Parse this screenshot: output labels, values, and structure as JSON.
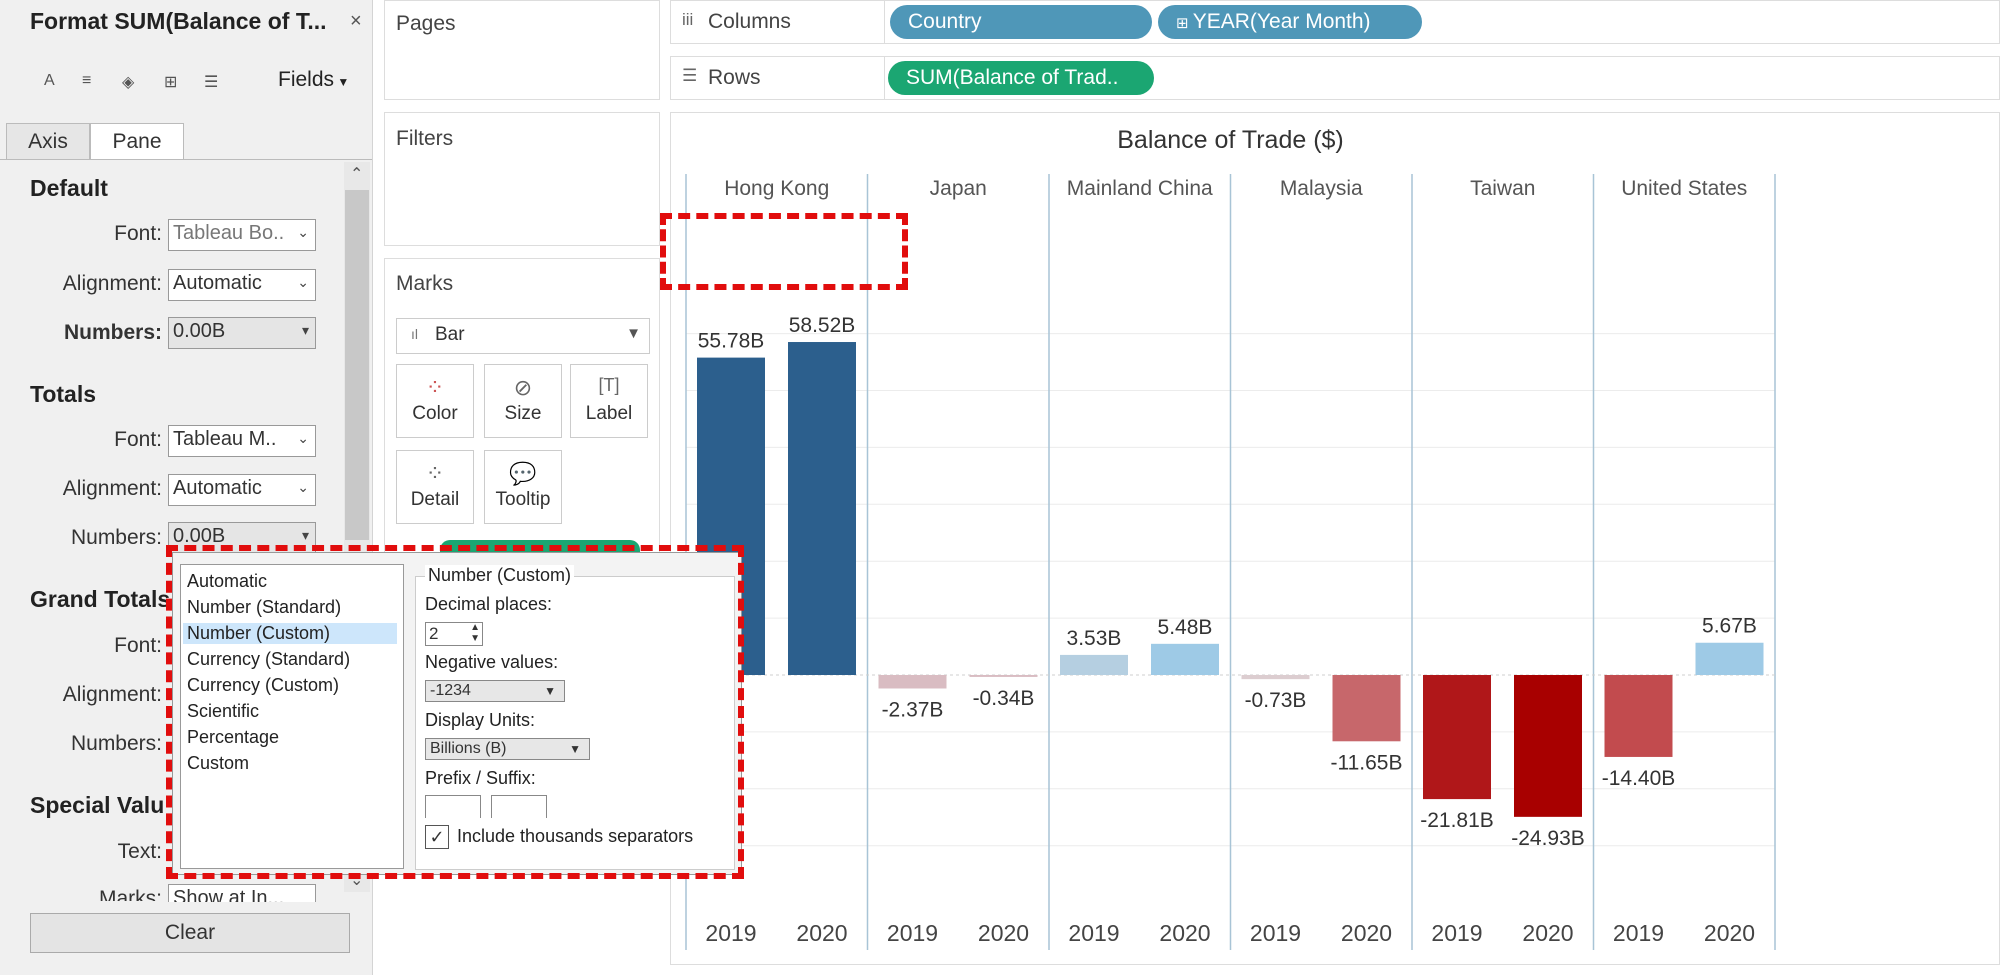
{
  "format_pane": {
    "title": "Format SUM(Balance of T...",
    "close": "×",
    "toolbar_icons": [
      "font-icon",
      "align-icon",
      "shading-icon",
      "borders-icon",
      "lines-icon"
    ],
    "fields_label": "Fields",
    "tabs": [
      "Axis",
      "Pane"
    ],
    "default": {
      "heading": "Default",
      "font_label": "Font:",
      "font_value": "Tableau Bo..",
      "alignment_label": "Alignment:",
      "alignment_value": "Automatic",
      "numbers_label": "Numbers:",
      "numbers_value": "0.00B"
    },
    "totals": {
      "heading": "Totals",
      "font_label": "Font:",
      "font_value": "Tableau M..",
      "alignment_label": "Alignment:",
      "alignment_value": "Automatic",
      "numbers_label": "Numbers:",
      "numbers_value": "0.00B"
    },
    "grand_totals": {
      "heading": "Grand Totals",
      "font_label": "Font:",
      "alignment_label": "Alignment:",
      "numbers_label": "Numbers:"
    },
    "special_values": {
      "heading": "Special Valu",
      "text_label": "Text:",
      "marks_label": "Marks:",
      "marks_value": "Show at In..."
    },
    "clear_label": "Clear"
  },
  "shelves": {
    "pages_title": "Pages",
    "filters_title": "Filters",
    "columns_label": "Columns",
    "rows_label": "Rows",
    "columns_pills": [
      "Country",
      "YEAR(Year Month)"
    ],
    "rows_pills": [
      "SUM(Balance of Trad.."
    ]
  },
  "marks": {
    "title": "Marks",
    "type": "Bar",
    "buttons": [
      "Color",
      "Size",
      "Label",
      "Detail",
      "Tooltip"
    ]
  },
  "number_format_popup": {
    "options": [
      "Automatic",
      "Number (Standard)",
      "Number (Custom)",
      "Currency (Standard)",
      "Currency (Custom)",
      "Scientific",
      "Percentage",
      "Custom"
    ],
    "selected": "Number (Custom)",
    "group_title": "Number (Custom)",
    "decimal_label": "Decimal places:",
    "decimal_value": "2",
    "negative_label": "Negative values:",
    "negative_value": "-1234",
    "units_label": "Display Units:",
    "units_value": "Billions (B)",
    "prefix_label": "Prefix / Suffix:",
    "thousands_label": "Include thousands separators",
    "thousands_checked": "✓"
  },
  "colors": {
    "highlight": "#e10d0d",
    "pill_dimension": "#4f97b8",
    "pill_measure": "#1ba672"
  },
  "chart_data": {
    "type": "bar",
    "title": "Balance of Trade ($)",
    "countries": [
      "Hong Kong",
      "Japan",
      "Mainland China",
      "Malaysia",
      "Taiwan",
      "United States"
    ],
    "years": [
      "2019",
      "2020"
    ],
    "series": [
      {
        "name": "2019",
        "values": [
          55.78,
          -2.37,
          3.53,
          -0.73,
          -21.81,
          -14.4
        ]
      },
      {
        "name": "2020",
        "values": [
          58.52,
          -0.34,
          5.48,
          -11.65,
          -24.93,
          5.67
        ]
      }
    ],
    "labels": [
      [
        "55.78B",
        "58.52B"
      ],
      [
        "-2.37B",
        "-0.34B"
      ],
      [
        "3.53B",
        "5.48B"
      ],
      [
        "-0.73B",
        "-11.65B"
      ],
      [
        "-21.81B",
        "-24.93B"
      ],
      [
        "-14.40B",
        "5.67B"
      ]
    ],
    "colors": [
      [
        "#2c5f8d",
        "#2c5f8d"
      ],
      [
        "#d9bcc2",
        "#d9bcc2"
      ],
      [
        "#b5cfe1",
        "#9ecae6"
      ],
      [
        "#dccdd0",
        "#c7676b"
      ],
      [
        "#b01719",
        "#a80000"
      ],
      [
        "#c24b4e",
        "#9ecae6"
      ]
    ],
    "ylim": [
      -30,
      60
    ],
    "unit": "B"
  }
}
